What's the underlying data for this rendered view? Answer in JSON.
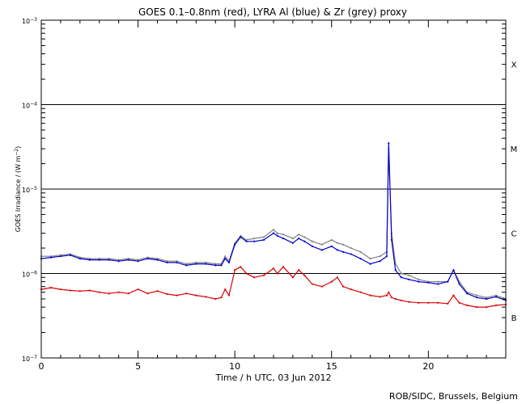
{
  "chart_data": {
    "type": "line",
    "title": "GOES 0.1–0.8nm (red), LYRA Al (blue) & Zr (grey) proxy",
    "xlabel": "Time / h UTC, 03 Jun 2012",
    "ylabel": "GOES Irradiance / (W m⁻²)",
    "xlim": [
      0,
      24
    ],
    "ylim": [
      1e-07,
      0.001
    ],
    "yscale": "log",
    "x_ticks": [
      "0",
      "5",
      "10",
      "15",
      "20"
    ],
    "x_tick_values": [
      0,
      5,
      10,
      15,
      20
    ],
    "y_tick_values": [
      1e-07,
      1e-06,
      1e-05,
      0.0001,
      0.001
    ],
    "y_ticks": [
      {
        "mant": "10",
        "exp": "−7"
      },
      {
        "mant": "10",
        "exp": "−6"
      },
      {
        "mant": "10",
        "exp": "−5"
      },
      {
        "mant": "10",
        "exp": "−4"
      },
      {
        "mant": "10",
        "exp": "−3"
      }
    ],
    "ylabel_parts": {
      "main": "GOES Irradiance / (W m",
      "exp": "−2",
      "tail": ")"
    },
    "threshold_lines": [
      1e-06,
      1e-05,
      0.0001
    ],
    "flare_classes": [
      {
        "label": "X",
        "level": 0.0003
      },
      {
        "label": "M",
        "level": 3e-05
      },
      {
        "label": "C",
        "level": 3e-06
      },
      {
        "label": "B",
        "level": 3e-07
      }
    ],
    "grid": false,
    "series": [
      {
        "color": "#808080",
        "x": [
          0,
          0.5,
          1,
          1.5,
          2,
          2.5,
          3,
          3.5,
          4,
          4.5,
          5,
          5.5,
          6,
          6.5,
          7,
          7.5,
          8,
          8.5,
          9,
          9.3,
          9.5,
          9.7,
          10,
          10.3,
          10.6,
          11,
          11.5,
          12,
          12.2,
          12.5,
          13,
          13.3,
          13.6,
          14,
          14.5,
          15,
          15.3,
          15.6,
          16,
          16.5,
          17,
          17.5,
          17.85,
          17.95,
          18.1,
          18.3,
          18.6,
          19,
          19.5,
          20,
          20.5,
          21,
          21.3,
          21.6,
          22,
          22.5,
          23,
          23.5,
          24
        ],
        "y": [
          1.6e-06,
          1.6e-06,
          1.65e-06,
          1.7e-06,
          1.55e-06,
          1.5e-06,
          1.5e-06,
          1.5e-06,
          1.45e-06,
          1.5e-06,
          1.45e-06,
          1.55e-06,
          1.5e-06,
          1.4e-06,
          1.4e-06,
          1.3e-06,
          1.35e-06,
          1.35e-06,
          1.3e-06,
          1.3e-06,
          1.6e-06,
          1.4e-06,
          2.3e-06,
          2.8e-06,
          2.5e-06,
          2.6e-06,
          2.7e-06,
          3.3e-06,
          3e-06,
          2.9e-06,
          2.6e-06,
          2.9e-06,
          2.7e-06,
          2.4e-06,
          2.2e-06,
          2.5e-06,
          2.3e-06,
          2.2e-06,
          2e-06,
          1.8e-06,
          1.5e-06,
          1.6e-06,
          1.8e-06,
          3e-05,
          3e-06,
          1.3e-06,
          1e-06,
          9.5e-07,
          8.5e-07,
          8e-07,
          8e-07,
          8e-07,
          1.1e-06,
          8e-07,
          6e-07,
          5.5e-07,
          5.2e-07,
          5.5e-07,
          5e-07
        ]
      },
      {
        "color": "#0000cc",
        "x": [
          0,
          0.5,
          1,
          1.5,
          2,
          2.5,
          3,
          3.5,
          4,
          4.5,
          5,
          5.5,
          6,
          6.5,
          7,
          7.5,
          8,
          8.5,
          9,
          9.3,
          9.5,
          9.7,
          10,
          10.3,
          10.6,
          11,
          11.5,
          12,
          12.2,
          12.5,
          13,
          13.3,
          13.6,
          14,
          14.5,
          15,
          15.3,
          15.6,
          16,
          16.5,
          17,
          17.5,
          17.85,
          17.95,
          18.1,
          18.3,
          18.6,
          19,
          19.5,
          20,
          20.5,
          21,
          21.3,
          21.6,
          22,
          22.5,
          23,
          23.5,
          24
        ],
        "y": [
          1.5e-06,
          1.55e-06,
          1.6e-06,
          1.65e-06,
          1.5e-06,
          1.45e-06,
          1.45e-06,
          1.45e-06,
          1.4e-06,
          1.45e-06,
          1.4e-06,
          1.5e-06,
          1.45e-06,
          1.35e-06,
          1.35e-06,
          1.25e-06,
          1.3e-06,
          1.3e-06,
          1.25e-06,
          1.25e-06,
          1.5e-06,
          1.35e-06,
          2.2e-06,
          2.7e-06,
          2.4e-06,
          2.4e-06,
          2.5e-06,
          3e-06,
          2.8e-06,
          2.6e-06,
          2.3e-06,
          2.6e-06,
          2.4e-06,
          2.1e-06,
          1.9e-06,
          2.1e-06,
          1.9e-06,
          1.8e-06,
          1.7e-06,
          1.5e-06,
          1.3e-06,
          1.4e-06,
          1.6e-06,
          3.5e-05,
          2.5e-06,
          1.1e-06,
          9e-07,
          8.5e-07,
          8e-07,
          7.8e-07,
          7.5e-07,
          8e-07,
          1.1e-06,
          7.5e-07,
          5.8e-07,
          5.2e-07,
          5e-07,
          5.3e-07,
          4.8e-07
        ]
      },
      {
        "color": "#dd0000",
        "x": [
          0,
          0.5,
          1,
          1.5,
          2,
          2.5,
          3,
          3.5,
          4,
          4.5,
          5,
          5.5,
          6,
          6.5,
          7,
          7.5,
          8,
          8.5,
          9,
          9.3,
          9.5,
          9.7,
          10,
          10.3,
          10.6,
          11,
          11.5,
          12,
          12.2,
          12.5,
          13,
          13.3,
          13.6,
          14,
          14.5,
          15,
          15.3,
          15.6,
          16,
          16.5,
          17,
          17.5,
          17.85,
          17.95,
          18.1,
          18.3,
          18.6,
          19,
          19.5,
          20,
          20.5,
          21,
          21.3,
          21.6,
          22,
          22.5,
          23,
          23.5,
          24
        ],
        "y": [
          6.5e-07,
          6.8e-07,
          6.5e-07,
          6.3e-07,
          6.2e-07,
          6.3e-07,
          6e-07,
          5.8e-07,
          6e-07,
          5.8e-07,
          6.5e-07,
          5.8e-07,
          6.2e-07,
          5.7e-07,
          5.5e-07,
          5.8e-07,
          5.5e-07,
          5.3e-07,
          5e-07,
          5.2e-07,
          6.5e-07,
          5.5e-07,
          1.1e-06,
          1.2e-06,
          1e-06,
          9e-07,
          9.5e-07,
          1.15e-06,
          1e-06,
          1.2e-06,
          9e-07,
          1.1e-06,
          9.5e-07,
          7.5e-07,
          7e-07,
          8e-07,
          9e-07,
          7e-07,
          6.5e-07,
          6e-07,
          5.5e-07,
          5.3e-07,
          5.5e-07,
          6e-07,
          5.2e-07,
          5e-07,
          4.8e-07,
          4.6e-07,
          4.5e-07,
          4.5e-07,
          4.5e-07,
          4.4e-07,
          5.5e-07,
          4.5e-07,
          4.2e-07,
          4e-07,
          4e-07,
          4.2e-07,
          4.3e-07
        ]
      }
    ]
  },
  "credit": "ROB/SIDC, Brussels, Belgium"
}
